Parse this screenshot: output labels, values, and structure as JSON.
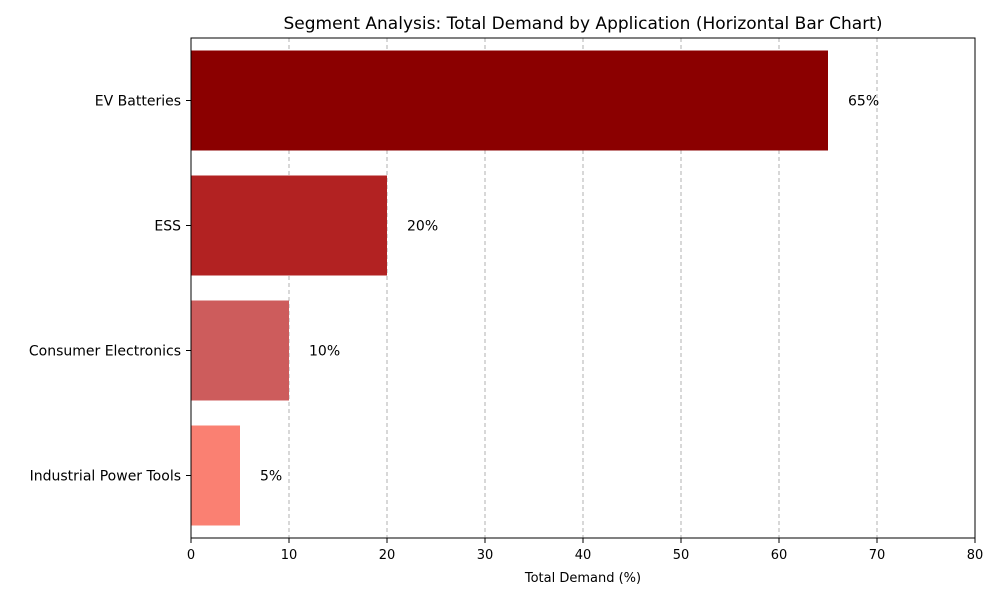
{
  "chart_data": {
    "type": "bar",
    "orientation": "horizontal",
    "title": "Segment Analysis: Total Demand by Application (Horizontal Bar Chart)",
    "xlabel": "Total Demand (%)",
    "ylabel": "",
    "xlim": [
      0,
      80
    ],
    "xticks": [
      "0",
      "10",
      "20",
      "30",
      "40",
      "50",
      "60",
      "70",
      "80"
    ],
    "grid": "vertical dashed",
    "categories": [
      "EV Batteries",
      "ESS",
      "Consumer Electronics",
      "Industrial Power Tools"
    ],
    "values": [
      65,
      20,
      10,
      5
    ],
    "data_labels": [
      "65%",
      "20%",
      "10%",
      "5%"
    ],
    "colors": [
      "#8b0000",
      "#b22222",
      "#cd5c5c",
      "#fa8072"
    ]
  }
}
